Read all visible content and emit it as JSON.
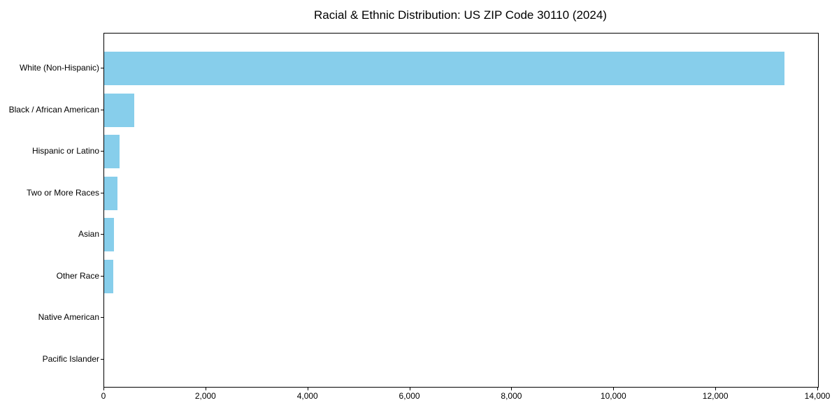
{
  "chart_data": {
    "type": "bar",
    "orientation": "horizontal",
    "title": "Racial & Ethnic Distribution: US ZIP Code 30110 (2024)",
    "categories": [
      "White (Non-Hispanic)",
      "Black / African American",
      "Hispanic or Latino",
      "Two or More Races",
      "Asian",
      "Other Race",
      "Native American",
      "Pacific Islander"
    ],
    "values": [
      13340,
      590,
      295,
      260,
      190,
      185,
      0,
      0
    ],
    "xlabel": "",
    "ylabel": "",
    "xlim": [
      0,
      14000
    ],
    "xticks": [
      0,
      2000,
      4000,
      6000,
      8000,
      10000,
      12000,
      14000
    ],
    "xticklabels": [
      "0",
      "2,000",
      "4,000",
      "6,000",
      "8,000",
      "10,000",
      "12,000",
      "14,000"
    ],
    "bar_color": "#87CEEB",
    "frame_color": "#000000",
    "text_color": "#000000",
    "grid": false,
    "legend_position": "none"
  }
}
